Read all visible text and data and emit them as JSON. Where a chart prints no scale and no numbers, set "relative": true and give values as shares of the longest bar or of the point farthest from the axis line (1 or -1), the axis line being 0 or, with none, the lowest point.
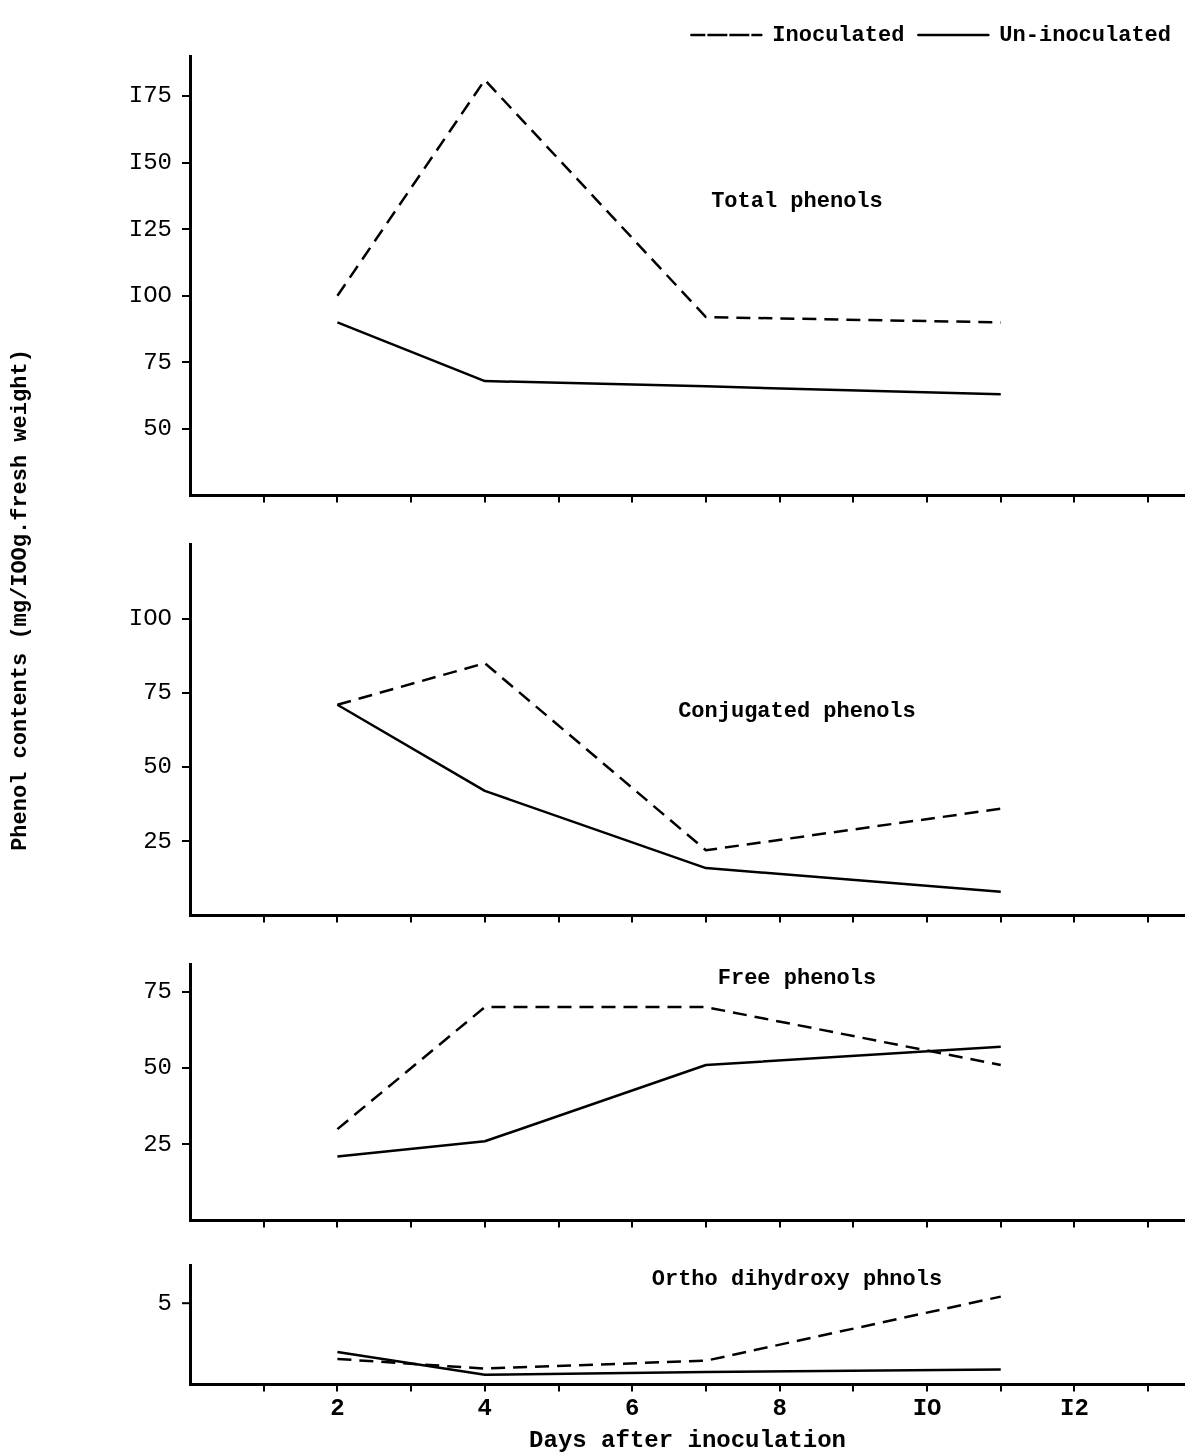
{
  "chart_data": [
    {
      "type": "line",
      "x": [
        2,
        4,
        7,
        11
      ],
      "series": [
        {
          "name": "Inoculated",
          "color": "#000000",
          "line_style": "dashed",
          "values": [
            100,
            181,
            92,
            90
          ]
        },
        {
          "name": "Un-inoculated",
          "color": "#000000",
          "line_style": "solid",
          "values": [
            90,
            68,
            66,
            63
          ]
        }
      ],
      "xlim": [
        0,
        13.5
      ],
      "xticks": [
        {
          "value": 1,
          "label": null
        },
        {
          "value": 2,
          "label": null
        },
        {
          "value": 3,
          "label": null
        },
        {
          "value": 4,
          "label": null
        },
        {
          "value": 5,
          "label": null
        },
        {
          "value": 6,
          "label": null
        },
        {
          "value": 7,
          "label": null
        },
        {
          "value": 8,
          "label": null
        },
        {
          "value": 9,
          "label": null
        },
        {
          "value": 10,
          "label": null
        },
        {
          "value": 11,
          "label": null
        },
        {
          "value": 12,
          "label": null
        },
        {
          "value": 13,
          "label": null
        }
      ],
      "ylim": [
        25,
        190
      ],
      "yticks": [
        50,
        75,
        {
          "value": 100,
          "label": "IOO"
        },
        {
          "value": 125,
          "label": "I25"
        },
        {
          "value": 150,
          "label": "I50"
        },
        {
          "value": 175,
          "label": "I75"
        }
      ],
      "annotations": [
        "Total phenols"
      ],
      "legend": "top right",
      "marker": "none",
      "grid": false,
      "tick_labels": "y"
    },
    {
      "type": "line",
      "x": [
        2,
        4,
        7,
        11
      ],
      "series": [
        {
          "color": "#000000",
          "line_style": "dashed",
          "values": [
            71,
            85,
            22,
            36
          ]
        },
        {
          "color": "#000000",
          "line_style": "solid",
          "values": [
            71,
            42,
            16,
            8
          ]
        }
      ],
      "xlim": [
        0,
        13.5
      ],
      "xticks": [
        {
          "value": 1,
          "label": null
        },
        {
          "value": 2,
          "label": null
        },
        {
          "value": 3,
          "label": null
        },
        {
          "value": 4,
          "label": null
        },
        {
          "value": 5,
          "label": null
        },
        {
          "value": 6,
          "label": null
        },
        {
          "value": 7,
          "label": null
        },
        {
          "value": 8,
          "label": null
        },
        {
          "value": 9,
          "label": null
        },
        {
          "value": 10,
          "label": null
        },
        {
          "value": 11,
          "label": null
        },
        {
          "value": 12,
          "label": null
        },
        {
          "value": 13,
          "label": null
        }
      ],
      "ylim": [
        0,
        125
      ],
      "yticks": [
        25,
        50,
        75,
        {
          "value": 100,
          "label": "IOO"
        }
      ],
      "ylabel": "Phenol contents (mg/IOOg.fresh weight)",
      "annotations": [
        "Conjugated phenols"
      ],
      "marker": "none",
      "grid": false,
      "tick_labels": "y"
    },
    {
      "type": "line",
      "x": [
        2,
        4,
        7,
        11
      ],
      "series": [
        {
          "color": "#000000",
          "line_style": "dashed",
          "values": [
            30,
            70,
            70,
            51
          ]
        },
        {
          "color": "#000000",
          "line_style": "solid",
          "values": [
            21,
            26,
            51,
            57
          ]
        }
      ],
      "xlim": [
        0,
        13.5
      ],
      "xticks": [
        {
          "value": 1,
          "label": null
        },
        {
          "value": 2,
          "label": null
        },
        {
          "value": 3,
          "label": null
        },
        {
          "value": 4,
          "label": null
        },
        {
          "value": 5,
          "label": null
        },
        {
          "value": 6,
          "label": null
        },
        {
          "value": 7,
          "label": null
        },
        {
          "value": 8,
          "label": null
        },
        {
          "value": 9,
          "label": null
        },
        {
          "value": 10,
          "label": null
        },
        {
          "value": 11,
          "label": null
        },
        {
          "value": 12,
          "label": null
        },
        {
          "value": 13,
          "label": null
        }
      ],
      "ylim": [
        0,
        84
      ],
      "yticks": [
        25,
        50,
        75
      ],
      "annotations": [
        "Free phenols"
      ],
      "marker": "none",
      "grid": false,
      "tick_labels": "y"
    },
    {
      "type": "line",
      "x": [
        2,
        4,
        7,
        11
      ],
      "series": [
        {
          "color": "#000000",
          "line_style": "dashed",
          "values": [
            0.29,
            0.18,
            0.27,
            1
          ]
        },
        {
          "color": "#000000",
          "line_style": "solid",
          "values": [
            0.37,
            0.11,
            0.14,
            0.17
          ]
        }
      ],
      "xlim": [
        0,
        13.5
      ],
      "xticks": [
        {
          "value": 1,
          "label": null
        },
        2,
        {
          "value": 3,
          "label": null
        },
        4,
        {
          "value": 5,
          "label": null
        },
        6,
        {
          "value": 7,
          "label": null
        },
        8,
        {
          "value": 9,
          "label": null
        },
        {
          "value": 10,
          "label": "IO"
        },
        {
          "value": 11,
          "label": null
        },
        {
          "value": 12,
          "label": "I2"
        },
        {
          "value": 13,
          "label": null
        }
      ],
      "relative": true,
      "xlabel": "Days after inoculation",
      "annotations": [
        "Ortho dihydroxy phnols",
        "5"
      ],
      "marker": "none",
      "grid": false
    }
  ]
}
